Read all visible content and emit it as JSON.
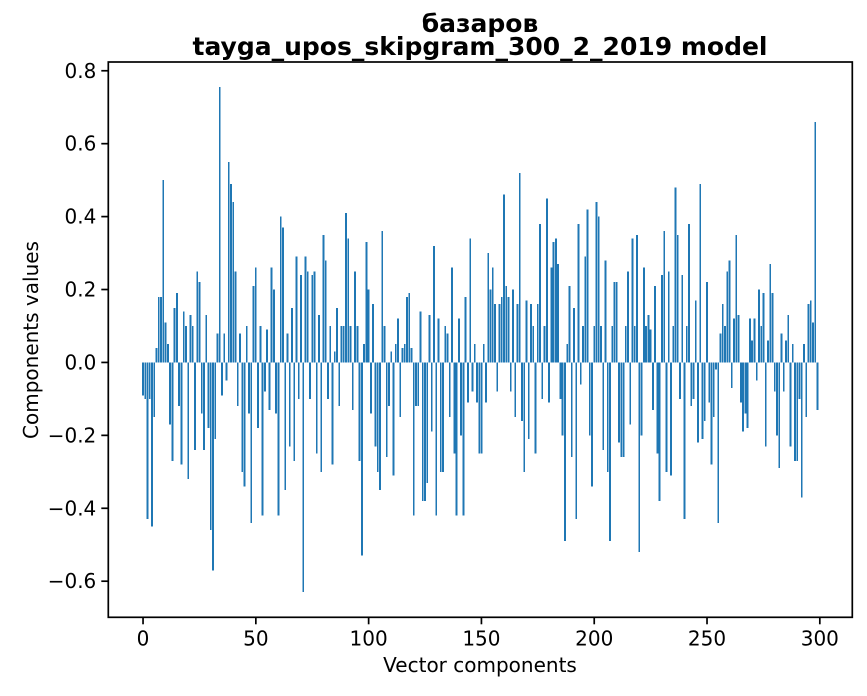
{
  "figure": {
    "title_line1": "базаров",
    "title_line2": "tayga_upos_skipgram_300_2_2019 model",
    "xlabel": "Vector components",
    "ylabel": "Components values"
  },
  "chart_data": {
    "type": "bar",
    "title": "базаров\ntayga_upos_skipgram_300_2_2019 model",
    "xlabel": "Vector components",
    "ylabel": "Components values",
    "legend": "none",
    "grid": false,
    "bar_color": "#1f77b4",
    "axis_color": "#000000",
    "x_tick_values": [
      0,
      50,
      100,
      150,
      200,
      250,
      300
    ],
    "x_tick_labels": [
      "0",
      "50",
      "100",
      "150",
      "200",
      "250",
      "300"
    ],
    "y_tick_values": [
      -0.6,
      -0.4,
      -0.2,
      0.0,
      0.2,
      0.4,
      0.6,
      0.8
    ],
    "y_tick_labels": [
      "−0.6",
      "−0.4",
      "−0.2",
      "0.0",
      "0.2",
      "0.4",
      "0.6",
      "0.8"
    ],
    "xlim": [
      -15.4,
      314.4
    ],
    "ylim": [
      -0.699,
      0.824
    ],
    "x_start": 0,
    "x_step": 1,
    "n_components": 300,
    "values": [
      -0.09,
      -0.1,
      -0.43,
      -0.1,
      -0.45,
      -0.15,
      0.04,
      0.18,
      0.18,
      0.5,
      0.11,
      0.05,
      -0.17,
      -0.27,
      0.15,
      0.19,
      -0.12,
      -0.28,
      0.14,
      0.1,
      -0.32,
      0.13,
      0.1,
      -0.24,
      0.25,
      0.22,
      -0.14,
      -0.24,
      0.13,
      -0.18,
      -0.46,
      -0.57,
      -0.21,
      0.08,
      0.755,
      -0.09,
      0.08,
      -0.05,
      0.55,
      0.49,
      0.44,
      0.25,
      -0.12,
      0.08,
      -0.3,
      -0.34,
      0.1,
      -0.14,
      -0.44,
      0.21,
      0.26,
      -0.18,
      0.1,
      -0.42,
      -0.08,
      0.09,
      -0.13,
      0.26,
      0.2,
      -0.14,
      -0.42,
      0.4,
      0.37,
      -0.35,
      0.08,
      -0.23,
      0.15,
      -0.27,
      0.29,
      -0.1,
      0.24,
      -0.63,
      0.29,
      0.25,
      -0.1,
      0.24,
      0.25,
      -0.25,
      0.13,
      -0.3,
      0.35,
      0.28,
      -0.1,
      0.1,
      -0.28,
      0.03,
      0.15,
      -0.12,
      0.1,
      0.1,
      0.41,
      0.34,
      0.1,
      -0.13,
      0.25,
      0.1,
      -0.27,
      -0.53,
      0.05,
      0.33,
      0.2,
      -0.14,
      0.16,
      -0.23,
      -0.3,
      -0.35,
      0.36,
      0.1,
      -0.26,
      -0.12,
      0.03,
      -0.31,
      0.05,
      0.12,
      -0.15,
      0.04,
      0.05,
      0.18,
      0.19,
      0.04,
      -0.42,
      -0.12,
      -0.12,
      0.14,
      -0.38,
      -0.38,
      -0.33,
      0.13,
      -0.19,
      0.32,
      -0.42,
      0.12,
      -0.3,
      -0.3,
      0.1,
      0.08,
      -0.15,
      0.26,
      -0.25,
      -0.42,
      0.12,
      -0.2,
      -0.42,
      0.18,
      -0.11,
      0.34,
      -0.08,
      0.05,
      -0.11,
      -0.25,
      -0.25,
      0.05,
      -0.11,
      0.3,
      0.2,
      0.26,
      0.16,
      -0.08,
      0.16,
      0.18,
      0.46,
      0.21,
      0.18,
      -0.08,
      0.2,
      -0.15,
      0.16,
      0.52,
      -0.16,
      -0.3,
      0.17,
      -0.21,
      0.16,
      0.1,
      -0.25,
      0.16,
      0.38,
      -0.1,
      0.1,
      0.45,
      -0.11,
      0.26,
      0.33,
      0.34,
      0.27,
      -0.1,
      -0.2,
      -0.49,
      0.05,
      0.21,
      -0.26,
      0.15,
      -0.43,
      0.38,
      -0.06,
      0.1,
      0.29,
      0.42,
      -0.2,
      -0.34,
      0.1,
      0.44,
      0.4,
      0.1,
      -0.24,
      0.28,
      -0.3,
      -0.49,
      0.1,
      0.22,
      0.22,
      -0.22,
      -0.26,
      -0.26,
      0.1,
      0.25,
      -0.17,
      0.34,
      0.1,
      0.35,
      -0.52,
      -0.2,
      0.26,
      0.1,
      0.13,
      0.09,
      -0.13,
      0.21,
      -0.25,
      -0.38,
      0.24,
      0.36,
      -0.3,
      0.25,
      -0.31,
      0.1,
      0.48,
      0.35,
      -0.1,
      0.24,
      -0.43,
      0.1,
      0.38,
      -0.12,
      -0.1,
      0.17,
      -0.22,
      0.49,
      -0.21,
      -0.16,
      0.22,
      -0.11,
      -0.28,
      -0.15,
      -0.02,
      -0.44,
      0.08,
      0.16,
      0.1,
      0.25,
      0.28,
      -0.07,
      0.12,
      0.35,
      0.13,
      -0.11,
      -0.19,
      -0.14,
      -0.18,
      0.12,
      0.06,
      0.12,
      -0.05,
      0.2,
      0.1,
      0.19,
      -0.23,
      0.06,
      0.27,
      0.19,
      -0.08,
      -0.2,
      -0.29,
      0.08,
      -0.08,
      0.06,
      0.13,
      -0.23,
      0.05,
      -0.27,
      -0.27,
      -0.1,
      -0.37,
      0.05,
      -0.15,
      0.16,
      0.17,
      0.11,
      0.66,
      -0.13
    ]
  }
}
